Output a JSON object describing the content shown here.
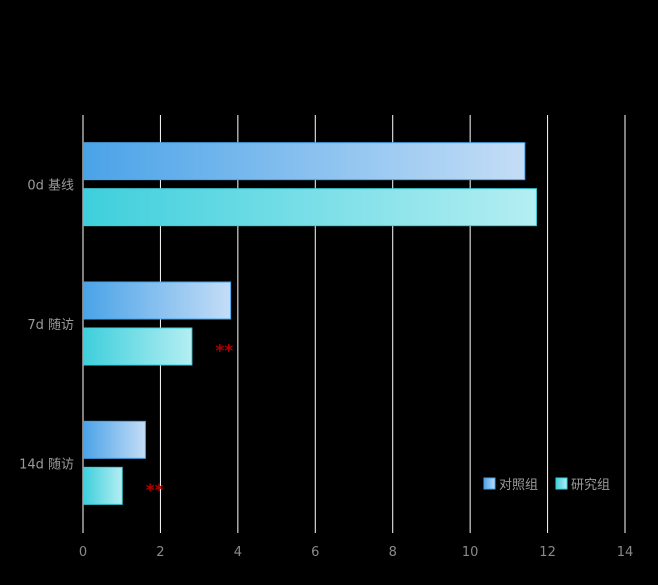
{
  "chart_data": {
    "type": "bar",
    "orientation": "horizontal",
    "categories": [
      "0d 基线",
      "7d 随访",
      "14d 随访"
    ],
    "series": [
      {
        "name": "对照组",
        "values": [
          11.4,
          3.8,
          1.6
        ],
        "color": "#4aa3e8",
        "color_end": "#c4ddf6"
      },
      {
        "name": "研究组",
        "values": [
          11.7,
          2.8,
          1.0
        ],
        "color": "#3ecfdc",
        "color_end": "#b4eef2"
      }
    ],
    "annotations": [
      {
        "category_index": 1,
        "series_index": 1,
        "text": "**"
      },
      {
        "category_index": 2,
        "series_index": 1,
        "text": "**"
      }
    ],
    "xlim": [
      0,
      14
    ],
    "xticks": [
      0,
      2,
      4,
      6,
      8,
      10,
      12,
      14
    ],
    "grid": true,
    "legend_position": "bottom-right",
    "colors": {
      "background": "#000000",
      "grid": "#ffffff",
      "significance": "#b00000"
    }
  }
}
